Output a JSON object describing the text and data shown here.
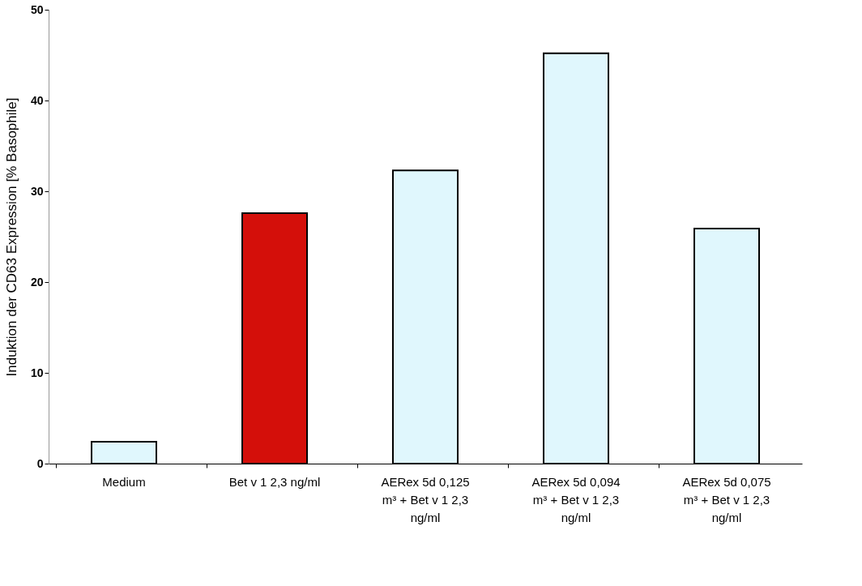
{
  "chart_data": {
    "type": "bar",
    "ylabel": "Induktion der CD63 Expression [% Basophile]",
    "categories": [
      "Medium",
      "Bet v 1 2,3 ng/ml",
      "AERex 5d 0,125 m³ + Bet v 1 2,3 ng/ml",
      "AERex 5d 0,094 m³ + Bet v 1 2,3 ng/ml",
      "AERex 5d 0,075 m³ + Bet v 1 2,3 ng/ml"
    ],
    "values": [
      2.4,
      27.6,
      32.3,
      45.2,
      25.9
    ],
    "colors": [
      "#e0f7fd",
      "#d40f0a",
      "#e0f7fd",
      "#e0f7fd",
      "#e0f7fd"
    ],
    "ylim": [
      0,
      50
    ],
    "yticks": [
      0,
      10,
      20,
      30,
      40,
      50
    ],
    "grid": false
  }
}
